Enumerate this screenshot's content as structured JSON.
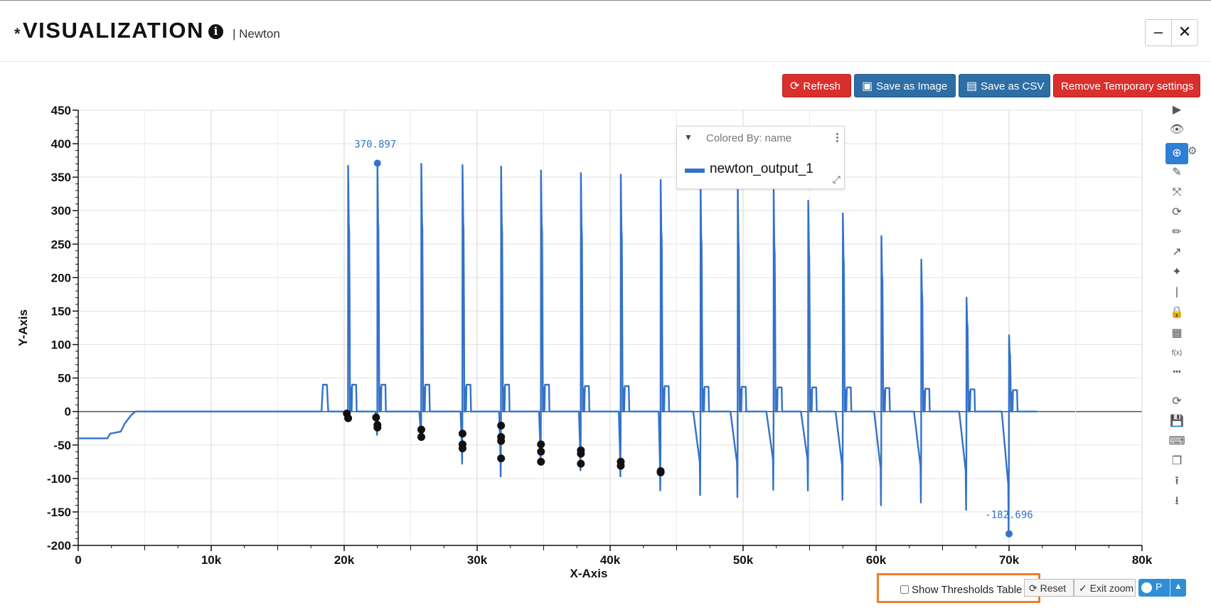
{
  "header": {
    "dirty_marker": "*",
    "title": "VISUALIZATION",
    "info_icon": "i",
    "subtitle": "| Newton",
    "minimize_label": "–",
    "close_label": "✕"
  },
  "toolbar": {
    "refresh_label": "Refresh",
    "save_image_label": "Save as Image",
    "save_csv_label": "Save as CSV",
    "remove_temp_label": "Remove Temporary settings",
    "refresh_color": "#d9302d",
    "save_color": "#2e6ea5"
  },
  "legend": {
    "caret": "▼",
    "title": "Colored By: name",
    "menu": "⋮",
    "series_name": "newton_output_1",
    "resize": "⤡"
  },
  "right_tools": [
    {
      "icon": "play-icon",
      "glyph": "▶"
    },
    {
      "icon": "eye-icon",
      "glyph": "👁"
    },
    {
      "icon": "zoom-in-icon",
      "glyph": "⊕"
    },
    {
      "icon": "brush-icon",
      "glyph": "✎"
    },
    {
      "icon": "expand-icon",
      "glyph": "⤧"
    },
    {
      "icon": "sync-icon",
      "glyph": "⟳"
    },
    {
      "icon": "pencil-icon",
      "glyph": "✏"
    },
    {
      "icon": "arrow-icon",
      "glyph": "↗"
    },
    {
      "icon": "magic-icon",
      "glyph": "✦"
    },
    {
      "icon": "line-icon",
      "glyph": "|"
    },
    {
      "icon": "lock-icon",
      "glyph": "🔒"
    },
    {
      "icon": "table-icon",
      "glyph": "▦"
    },
    {
      "icon": "function-icon",
      "glyph": "f(x)"
    },
    {
      "icon": "more-icon",
      "glyph": "•••"
    },
    {
      "icon": "refresh-icon",
      "glyph": "⟳"
    },
    {
      "icon": "save-icon",
      "glyph": "💾"
    },
    {
      "icon": "keyboard-icon",
      "glyph": "⌨"
    },
    {
      "icon": "copy-icon",
      "glyph": "❐"
    },
    {
      "icon": "upload-icon",
      "glyph": "⭱"
    },
    {
      "icon": "download-icon",
      "glyph": "⭳"
    }
  ],
  "tool_gear": "⚙",
  "bottom": {
    "thresholds_label": "Show Thresholds Table",
    "reset_label": "Reset",
    "reset_icon": "⟳",
    "exit_zoom_label": "Exit zoom",
    "exit_zoom_icon": "✓",
    "toggle_label": "P",
    "toggle_up": "▲",
    "highlight_color": "#f07d2a"
  },
  "chart_data": {
    "type": "line",
    "xlabel": "X-Axis",
    "ylabel": "Y-Axis",
    "xlim": [
      0,
      80000
    ],
    "ylim": [
      -200,
      450
    ],
    "xticks": [
      0,
      10000,
      20000,
      30000,
      40000,
      50000,
      60000,
      70000,
      80000
    ],
    "xtick_labels": [
      "0",
      "10k",
      "20k",
      "30k",
      "40k",
      "50k",
      "60k",
      "70k",
      "80k"
    ],
    "yticks": [
      -200,
      -150,
      -100,
      -50,
      0,
      50,
      100,
      150,
      200,
      250,
      300,
      350,
      400,
      450
    ],
    "grid": true,
    "legend_position": "top-right",
    "series": [
      {
        "name": "newton_output_1",
        "color": "#3472c9",
        "baseline": [
          [
            0,
            -40
          ],
          [
            2200,
            -40
          ],
          [
            2400,
            -33
          ],
          [
            3200,
            -30
          ],
          [
            3500,
            -18
          ],
          [
            4000,
            -5
          ],
          [
            4300,
            0
          ],
          [
            18300,
            0
          ],
          [
            18400,
            40
          ],
          [
            18700,
            40
          ],
          [
            18800,
            0
          ]
        ],
        "peaks": [
          {
            "x": 20300,
            "peak": 367,
            "shoulder": 282,
            "plateau": 40,
            "min": -10
          },
          {
            "x": 22500,
            "peak": 370.897,
            "shoulder": 285,
            "plateau": 40,
            "min": -35
          },
          {
            "x": 25800,
            "peak": 370,
            "shoulder": 287,
            "plateau": 40,
            "min": -40
          },
          {
            "x": 28900,
            "peak": 368,
            "shoulder": 285,
            "plateau": 40,
            "min": -78
          },
          {
            "x": 31800,
            "peak": 366,
            "shoulder": 282,
            "plateau": 40,
            "min": -97
          },
          {
            "x": 34800,
            "peak": 360,
            "shoulder": 280,
            "plateau": 40,
            "min": -77
          },
          {
            "x": 37800,
            "peak": 356,
            "shoulder": 278,
            "plateau": 38,
            "min": -88
          },
          {
            "x": 40800,
            "peak": 354,
            "shoulder": 274,
            "plateau": 38,
            "min": -97
          },
          {
            "x": 43800,
            "peak": 346,
            "shoulder": 270,
            "plateau": 38,
            "min": -118
          },
          {
            "x": 46800,
            "peak": 340,
            "shoulder": 262,
            "plateau": 37,
            "min": -125
          },
          {
            "x": 49600,
            "peak": 338,
            "shoulder": 255,
            "plateau": 37,
            "min": -128
          },
          {
            "x": 52300,
            "peak": 333,
            "shoulder": 248,
            "plateau": 36,
            "min": -117
          },
          {
            "x": 54900,
            "peak": 315,
            "shoulder": 242,
            "plateau": 36,
            "min": -118
          },
          {
            "x": 57500,
            "peak": 296,
            "shoulder": 232,
            "plateau": 36,
            "min": -132
          },
          {
            "x": 60400,
            "peak": 262,
            "shoulder": 205,
            "plateau": 35,
            "min": -140
          },
          {
            "x": 63400,
            "peak": 227,
            "shoulder": 178,
            "plateau": 34,
            "min": -136
          },
          {
            "x": 66800,
            "peak": 170,
            "shoulder": 133,
            "plateau": 33,
            "min": -147
          },
          {
            "x": 70000,
            "peak": 114,
            "shoulder": 88,
            "plateau": 32,
            "min": -182.696
          }
        ],
        "end_x": 72100
      }
    ],
    "markers": [
      [
        20200,
        -3
      ],
      [
        20300,
        -10
      ],
      [
        22400,
        -9
      ],
      [
        22500,
        -20
      ],
      [
        22500,
        -24
      ],
      [
        25800,
        -27
      ],
      [
        25800,
        -38
      ],
      [
        28900,
        -33
      ],
      [
        28900,
        -49
      ],
      [
        28900,
        -55
      ],
      [
        31800,
        -21
      ],
      [
        31800,
        -38
      ],
      [
        31800,
        -44
      ],
      [
        31800,
        -70
      ],
      [
        34800,
        -49
      ],
      [
        34800,
        -60
      ],
      [
        34800,
        -75
      ],
      [
        37800,
        -58
      ],
      [
        37800,
        -63
      ],
      [
        37800,
        -78
      ],
      [
        40800,
        -75
      ],
      [
        40800,
        -81
      ],
      [
        43800,
        -89
      ],
      [
        43800,
        -91
      ]
    ],
    "annotations": [
      {
        "x": 22500,
        "y": 370.897,
        "text": "370.897"
      },
      {
        "x": 70000,
        "y": -182.696,
        "text": "-182.696"
      }
    ]
  }
}
